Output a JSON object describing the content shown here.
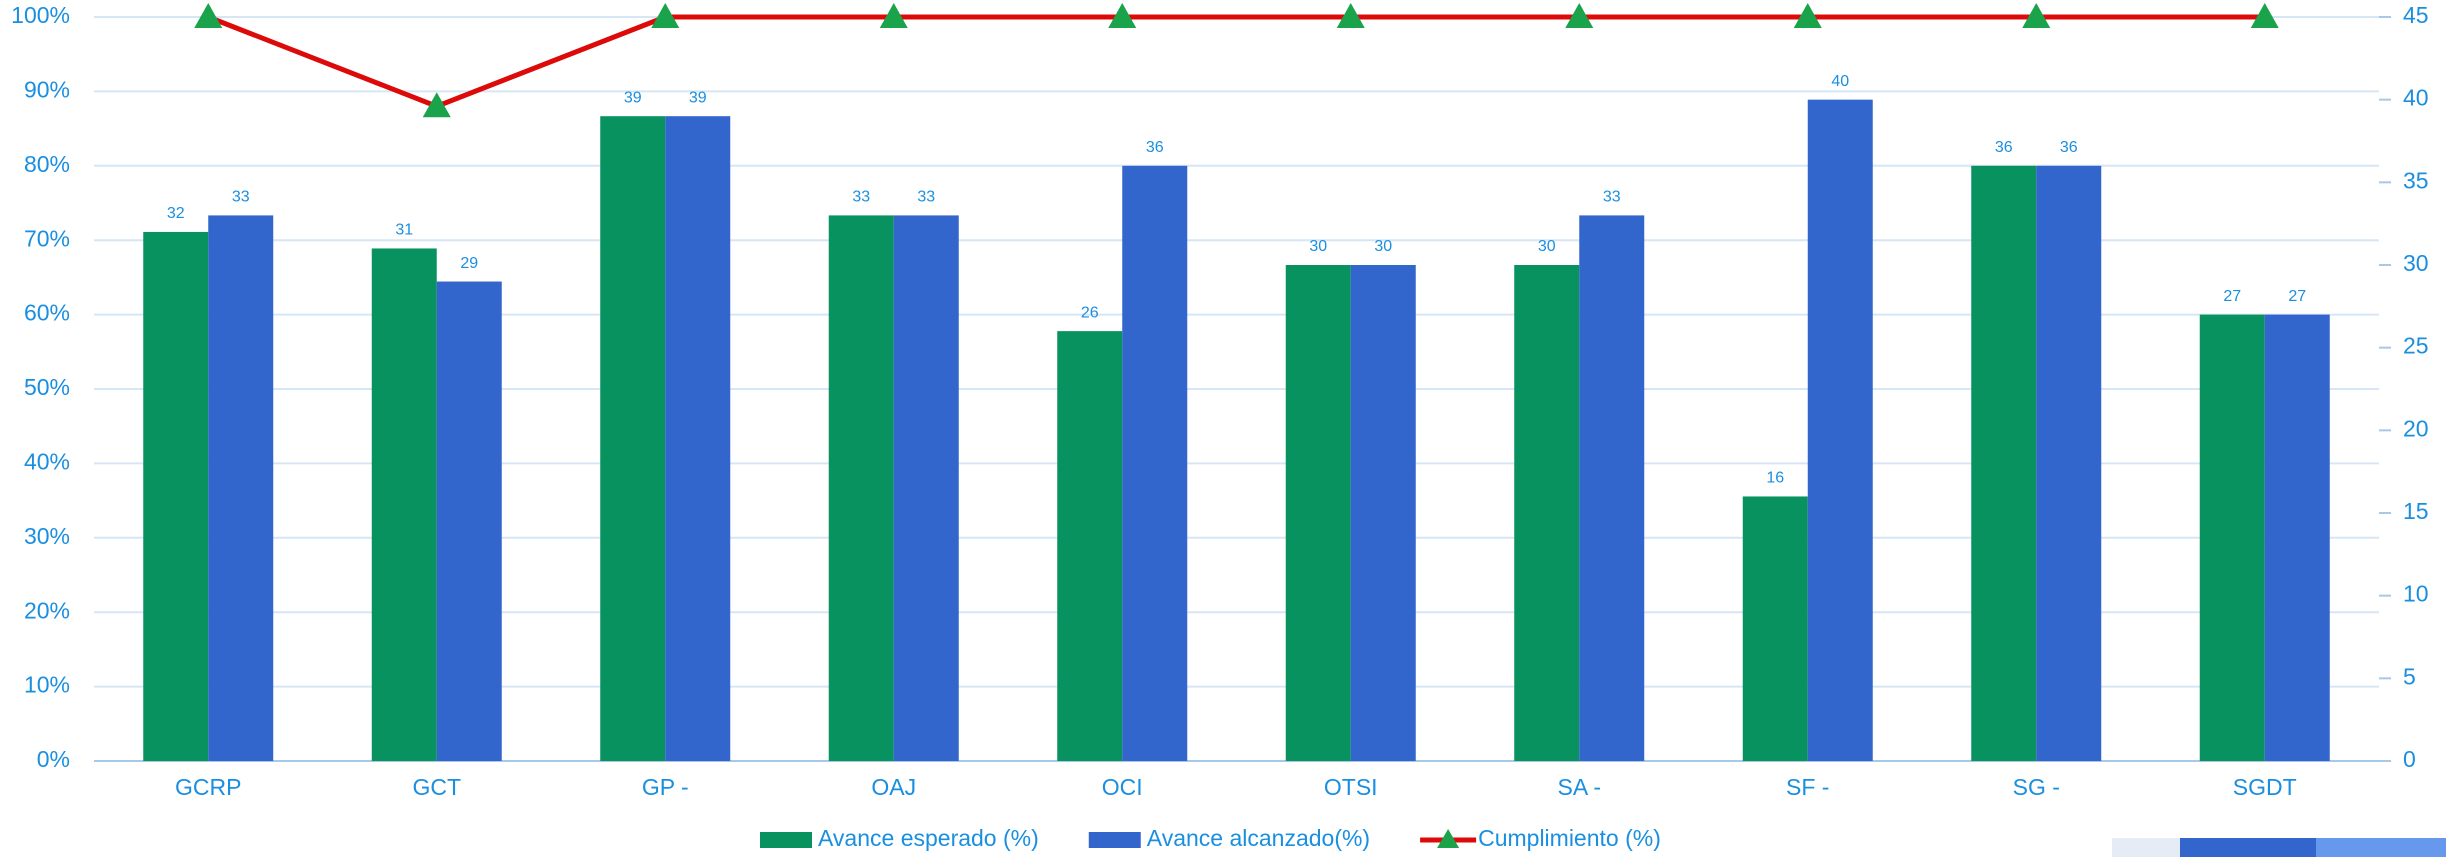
{
  "chart_data": {
    "type": "bar-line",
    "categories": [
      "GCRP",
      "GCT",
      "GP -",
      "OAJ",
      "OCI",
      "OTSI",
      "SA -",
      "SF -",
      "SG -",
      "SGDT"
    ],
    "series": [
      {
        "name": "Avance esperado (%)",
        "type": "bar",
        "axis": "y2",
        "color": "#07925f",
        "values": [
          32,
          31,
          39,
          33,
          26,
          30,
          30,
          16,
          36,
          27
        ]
      },
      {
        "name": "Avance alcanzado(%)",
        "type": "bar",
        "axis": "y2",
        "color": "#3366cc",
        "values": [
          33,
          29,
          39,
          33,
          36,
          30,
          33,
          40,
          36,
          27
        ]
      },
      {
        "name": "Cumplimiento (%)",
        "type": "line",
        "axis": "y",
        "color": "#dd0a0a",
        "marker_color": "#1aa34a",
        "values": [
          100,
          88,
          100,
          100,
          100,
          100,
          100,
          100,
          100,
          100
        ]
      }
    ],
    "ylim": [
      0,
      100
    ],
    "yticks": [
      {
        "value": 0,
        "label": "0%"
      },
      {
        "value": 10,
        "label": "10%"
      },
      {
        "value": 20,
        "label": "20%"
      },
      {
        "value": 30,
        "label": "30%"
      },
      {
        "value": 40,
        "label": "40%"
      },
      {
        "value": 50,
        "label": "50%"
      },
      {
        "value": 60,
        "label": "60%"
      },
      {
        "value": 70,
        "label": "70%"
      },
      {
        "value": 80,
        "label": "80%"
      },
      {
        "value": 90,
        "label": "90%"
      },
      {
        "value": 100,
        "label": "100%"
      }
    ],
    "y2lim": [
      0,
      45
    ],
    "y2ticks": [
      0,
      5,
      10,
      15,
      20,
      25,
      30,
      35,
      40,
      45
    ],
    "grid": true,
    "legend": "bottom"
  }
}
